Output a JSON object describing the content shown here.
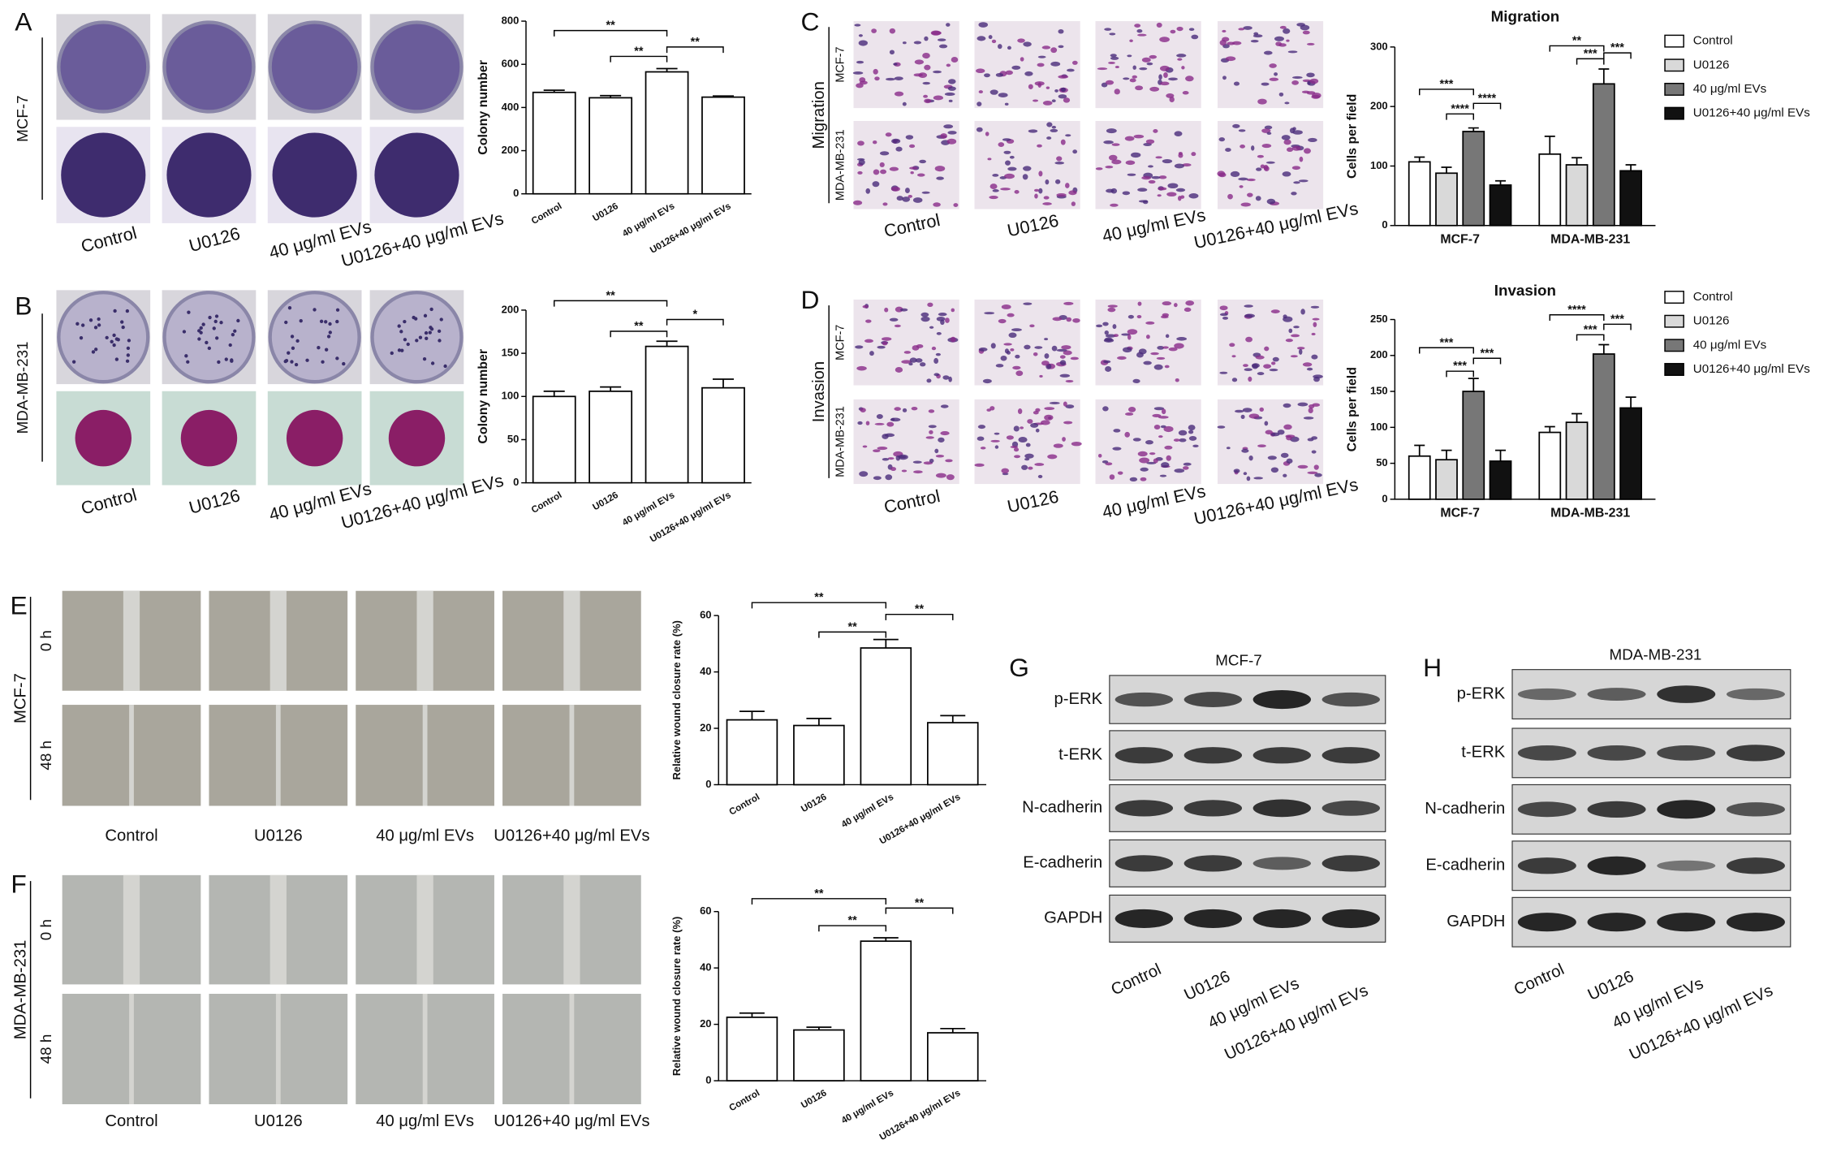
{
  "chart_data": [
    {
      "type": "bar",
      "ylabel": "Colony number",
      "categories": [
        "Control",
        "U0126",
        "40 μg/ml EVs",
        "U0126+40 μg/ml EVs"
      ],
      "values": [
        470,
        445,
        565,
        448
      ],
      "errors": [
        10,
        10,
        15,
        5
      ],
      "ylim": [
        0,
        800
      ],
      "yticks": [
        0,
        200,
        400,
        600,
        800
      ],
      "color": "#ffffff",
      "annotations": [
        "**",
        "**",
        "**"
      ]
    },
    {
      "type": "bar",
      "ylabel": "Colony number",
      "categories": [
        "Control",
        "U0126",
        "40 μg/ml EVs",
        "U0126+40 μg/ml EVs"
      ],
      "values": [
        100,
        106,
        158,
        110
      ],
      "errors": [
        6,
        5,
        6,
        10
      ],
      "ylim": [
        0,
        200
      ],
      "yticks": [
        0,
        50,
        100,
        150,
        200
      ],
      "color": "#ffffff",
      "annotations": [
        "**",
        "**",
        "*"
      ]
    },
    {
      "type": "grouped-bar",
      "title": "Migration",
      "ylabel": "Cells per field",
      "categories": [
        "MCF-7",
        "MDA-MB-231"
      ],
      "series": [
        {
          "name": "Control",
          "color": "#ffffff",
          "values": [
            107,
            120
          ],
          "errors": [
            8,
            30
          ]
        },
        {
          "name": "U0126",
          "color": "#d9d9d9",
          "values": [
            88,
            102
          ],
          "errors": [
            10,
            12
          ]
        },
        {
          "name": "40 μg/ml EVs",
          "color": "#777777",
          "values": [
            158,
            238
          ],
          "errors": [
            6,
            25
          ]
        },
        {
          "name": "U0126+40 μg/ml EVs",
          "color": "#111111",
          "values": [
            68,
            92
          ],
          "errors": [
            7,
            10
          ]
        }
      ],
      "ylim": [
        0,
        300
      ],
      "yticks": [
        0,
        100,
        200,
        300
      ],
      "annotations": [
        "***",
        "****",
        "****",
        "**",
        "***",
        "***"
      ]
    },
    {
      "type": "grouped-bar",
      "title": "Invasion",
      "ylabel": "Cells per field",
      "categories": [
        "MCF-7",
        "MDA-MB-231"
      ],
      "series": [
        {
          "name": "Control",
          "color": "#ffffff",
          "values": [
            60,
            93
          ],
          "errors": [
            15,
            8
          ]
        },
        {
          "name": "U0126",
          "color": "#d9d9d9",
          "values": [
            55,
            107
          ],
          "errors": [
            13,
            12
          ]
        },
        {
          "name": "40 μg/ml EVs",
          "color": "#777777",
          "values": [
            150,
            202
          ],
          "errors": [
            18,
            13
          ]
        },
        {
          "name": "U0126+40 μg/ml EVs",
          "color": "#111111",
          "values": [
            53,
            127
          ],
          "errors": [
            15,
            15
          ]
        }
      ],
      "ylim": [
        0,
        250
      ],
      "yticks": [
        0,
        50,
        100,
        150,
        200,
        250
      ],
      "annotations": [
        "***",
        "***",
        "***",
        "****",
        "***",
        "***"
      ]
    },
    {
      "type": "bar",
      "ylabel": "Relative wound closure rate (%)",
      "categories": [
        "Control",
        "U0126",
        "40 μg/ml EVs",
        "U0126+40 μg/ml EVs"
      ],
      "values": [
        23,
        21,
        48.5,
        22
      ],
      "errors": [
        3,
        2.5,
        3,
        2.5
      ],
      "ylim": [
        0,
        60
      ],
      "yticks": [
        0,
        20,
        40,
        60
      ],
      "color": "#ffffff",
      "annotations": [
        "**",
        "**",
        "**"
      ]
    },
    {
      "type": "bar",
      "ylabel": "Relative wound closure rate (%)",
      "categories": [
        "Control",
        "U0126",
        "40 μg/ml EVs",
        "U0126+40 μg/ml EVs"
      ],
      "values": [
        22.5,
        18,
        49.5,
        17
      ],
      "errors": [
        1.5,
        1,
        1.2,
        1.5
      ],
      "ylim": [
        0,
        60
      ],
      "yticks": [
        0,
        20,
        40,
        60
      ],
      "color": "#ffffff",
      "annotations": [
        "**",
        "**",
        "**"
      ]
    }
  ],
  "figure": {
    "panel_letters": [
      "A",
      "B",
      "C",
      "D",
      "E",
      "F",
      "G",
      "H"
    ],
    "photo_panels": [
      {
        "row_labels": [
          "MCF-7"
        ],
        "columns": [
          "Control",
          "U0126",
          "40 μg/ml EVs",
          "U0126+40 μg/ml EVs"
        ]
      },
      {
        "row_labels": [
          "MDA-MB-231"
        ],
        "columns": [
          "Control",
          "U0126",
          "40 μg/ml EVs",
          "U0126+40 μg/ml EVs"
        ]
      },
      {
        "group_label": "Migration",
        "row_labels": [
          "MCF-7",
          "MDA-MB-231"
        ],
        "columns": [
          "Control",
          "U0126",
          "40 μg/ml EVs",
          "U0126+40 μg/ml EVs"
        ]
      },
      {
        "group_label": "Invasion",
        "row_labels": [
          "MCF-7",
          "MDA-MB-231"
        ],
        "columns": [
          "Control",
          "U0126",
          "40 μg/ml EVs",
          "U0126+40 μg/ml EVs"
        ]
      },
      {
        "group_label": "MCF-7",
        "row_labels": [
          "0 h",
          "48 h"
        ],
        "columns": [
          "Control",
          "U0126",
          "40 μg/ml EVs",
          "U0126+40 μg/ml EVs"
        ]
      },
      {
        "group_label": "MDA-MB-231",
        "row_labels": [
          "0 h",
          "48 h"
        ],
        "columns": [
          "Control",
          "U0126",
          "40 μg/ml EVs",
          "U0126+40 μg/ml EVs"
        ]
      }
    ],
    "blots": [
      {
        "title": "MCF-7",
        "rows": [
          "p-ERK",
          "t-ERK",
          "N-cadherin",
          "E-cadherin",
          "GAPDH"
        ],
        "columns": [
          "Control",
          "U0126",
          "40 μg/ml EVs",
          "U0126+40 μg/ml EVs"
        ]
      },
      {
        "title": "MDA-MB-231",
        "rows": [
          "p-ERK",
          "t-ERK",
          "N-cadherin",
          "E-cadherin",
          "GAPDH"
        ],
        "columns": [
          "Control",
          "U0126",
          "40 μg/ml EVs",
          "U0126+40 μg/ml EVs"
        ]
      }
    ]
  }
}
